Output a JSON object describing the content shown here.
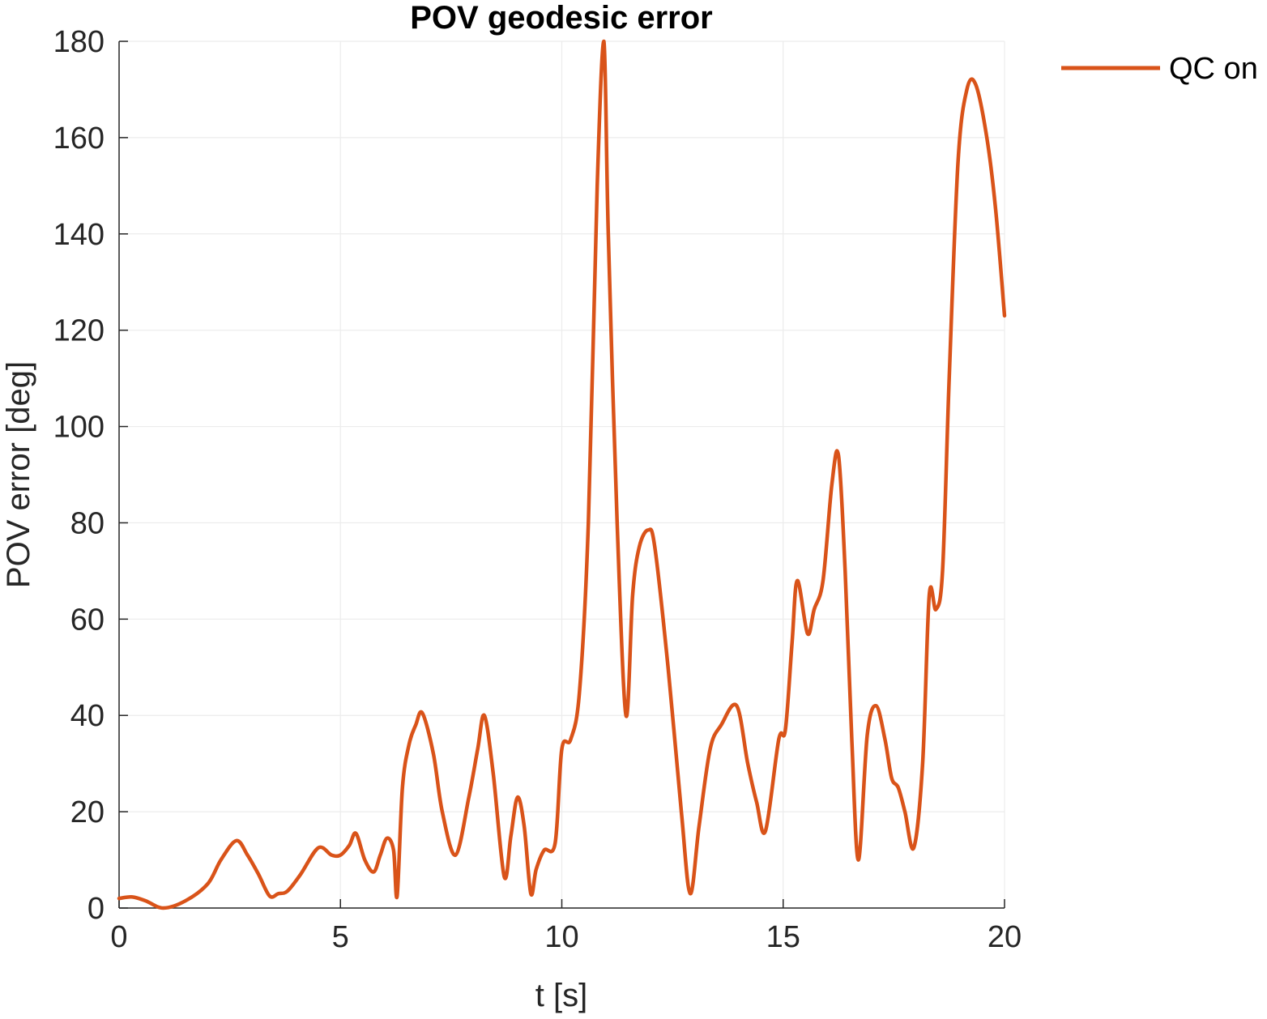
{
  "chart_data": {
    "type": "line",
    "title": "POV geodesic error",
    "xlabel": "t [s]",
    "ylabel": "POV error [deg]",
    "xlim": [
      0,
      20
    ],
    "ylim": [
      0,
      180
    ],
    "xticks": [
      0,
      5,
      10,
      15,
      20
    ],
    "yticks": [
      0,
      20,
      40,
      60,
      80,
      100,
      120,
      140,
      160,
      180
    ],
    "grid": true,
    "legend_position": "top-right outside",
    "series": [
      {
        "name": "QC on",
        "color": "#D95319",
        "x": [
          0,
          0.3,
          0.6,
          1.0,
          1.5,
          2.0,
          2.3,
          2.65,
          2.9,
          3.15,
          3.4,
          3.6,
          3.8,
          4.1,
          4.5,
          4.8,
          5.0,
          5.2,
          5.35,
          5.55,
          5.75,
          5.9,
          6.05,
          6.2,
          6.28,
          6.4,
          6.55,
          6.7,
          6.85,
          7.1,
          7.3,
          7.6,
          7.9,
          8.1,
          8.25,
          8.45,
          8.7,
          8.85,
          9.0,
          9.15,
          9.3,
          9.42,
          9.6,
          9.85,
          10.0,
          10.2,
          10.4,
          10.6,
          10.8,
          10.95,
          11.05,
          11.25,
          11.45,
          11.6,
          11.75,
          11.95,
          12.1,
          12.4,
          12.7,
          12.9,
          13.1,
          13.35,
          13.6,
          13.95,
          14.2,
          14.4,
          14.6,
          14.9,
          15.05,
          15.2,
          15.32,
          15.55,
          15.7,
          15.9,
          16.1,
          16.25,
          16.4,
          16.55,
          16.7,
          16.9,
          17.1,
          17.3,
          17.45,
          17.6,
          17.75,
          17.95,
          18.15,
          18.3,
          18.45,
          18.6,
          18.75,
          18.95,
          19.15,
          19.35,
          19.6,
          19.8,
          20.0
        ],
        "y": [
          2,
          2.3,
          1.5,
          0,
          1.5,
          5,
          10,
          14,
          11,
          7,
          2.5,
          3,
          3.5,
          7,
          12.5,
          11,
          11,
          13,
          15.5,
          10,
          7.5,
          11,
          14.5,
          12,
          2.5,
          25,
          34,
          38,
          40.5,
          32,
          20,
          11,
          23,
          33,
          40,
          28,
          6.5,
          15,
          23,
          17,
          3,
          8,
          12,
          13.5,
          33,
          35,
          45,
          80,
          150,
          180,
          140,
          80,
          40,
          65,
          75,
          78.5,
          75,
          50,
          20,
          3,
          17,
          33,
          38,
          42,
          30,
          22,
          16,
          35,
          37,
          55,
          68,
          57,
          62,
          68,
          88,
          94,
          70,
          35,
          10,
          36,
          42,
          35,
          27,
          25,
          20,
          12.5,
          30,
          65,
          62,
          70,
          110,
          155,
          170,
          171,
          160,
          145,
          123
        ]
      }
    ]
  }
}
